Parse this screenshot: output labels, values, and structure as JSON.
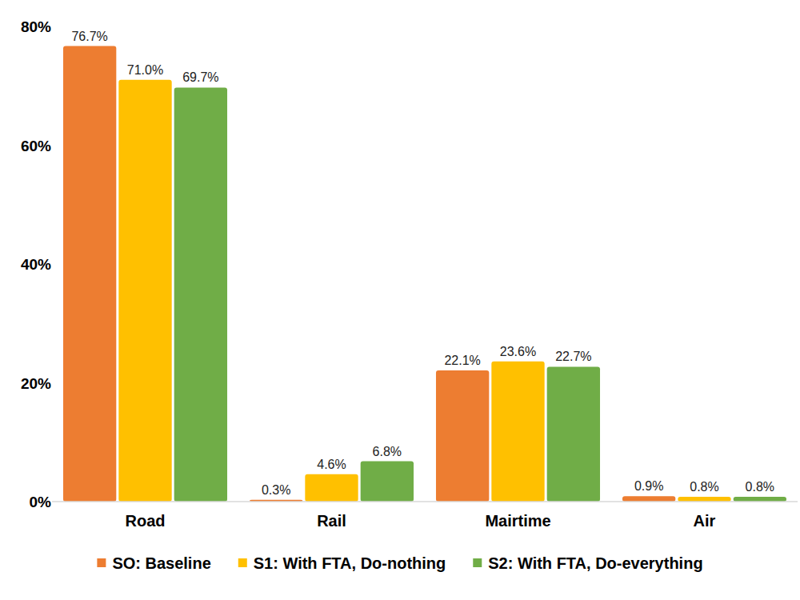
{
  "chart_data": {
    "type": "bar",
    "categories": [
      "Road",
      "Rail",
      "Mairtime",
      "Air"
    ],
    "series": [
      {
        "name": "SO: Baseline",
        "color": "#ed7d31",
        "values": [
          76.7,
          0.3,
          22.1,
          0.9
        ],
        "value_labels": [
          "76.7%",
          "0.3%",
          "22.1%",
          "0.9%"
        ]
      },
      {
        "name": "S1: With FTA, Do-nothing",
        "color": "#ffc000",
        "values": [
          71.0,
          4.6,
          23.6,
          0.8
        ],
        "value_labels": [
          "71.0%",
          "4.6%",
          "23.6%",
          "0.8%"
        ]
      },
      {
        "name": "S2: With FTA, Do-everything",
        "color": "#70ad47",
        "values": [
          69.7,
          6.8,
          22.7,
          0.8
        ],
        "value_labels": [
          "69.7%",
          "6.8%",
          "22.7%",
          "0.8%"
        ]
      }
    ],
    "ylim": [
      0,
      80
    ],
    "yticks": [
      {
        "value": 0,
        "label": "0%"
      },
      {
        "value": 20,
        "label": "20%"
      },
      {
        "value": 40,
        "label": "40%"
      },
      {
        "value": 60,
        "label": "60%"
      },
      {
        "value": 80,
        "label": "80%"
      }
    ],
    "grid": false,
    "legend": "bottom",
    "data_labels": true
  }
}
